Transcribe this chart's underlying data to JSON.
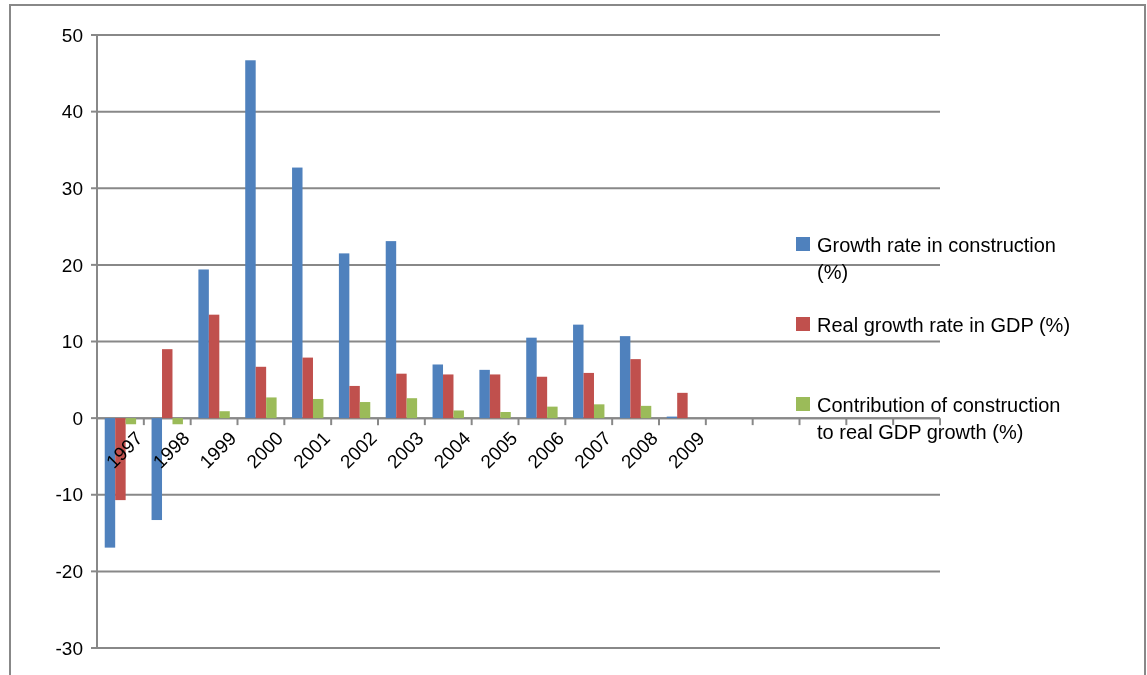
{
  "chart_data": {
    "type": "bar",
    "categories": [
      "1997",
      "1998",
      "1999",
      "2000",
      "2001",
      "2002",
      "2003",
      "2004",
      "2005",
      "2006",
      "2007",
      "2008",
      "2009",
      null,
      null,
      null,
      null,
      null
    ],
    "series": [
      {
        "name": "Growth rate in construction (%)",
        "color": "#4f81bd",
        "values": [
          -16.9,
          -13.3,
          19.4,
          46.7,
          32.7,
          21.5,
          23.1,
          7.0,
          6.3,
          10.5,
          12.2,
          10.7,
          0.2,
          null,
          null,
          null,
          null,
          null
        ]
      },
      {
        "name": "Real growth rate in GDP (%)",
        "color": "#c0504d",
        "values": [
          -10.7,
          9.0,
          13.5,
          6.7,
          7.9,
          4.2,
          5.8,
          5.7,
          5.7,
          5.4,
          5.9,
          7.7,
          3.3,
          null,
          null,
          null,
          null,
          null
        ]
      },
      {
        "name": "Contribution of construction to real GDP growth (%)",
        "color": "#9bbb59",
        "values": [
          -0.8,
          -0.8,
          0.9,
          2.7,
          2.5,
          2.1,
          2.6,
          1.0,
          0.8,
          1.5,
          1.8,
          1.6,
          null,
          null,
          null,
          null,
          null,
          null
        ]
      }
    ],
    "ylim": [
      -30,
      50
    ],
    "yticks": [
      -30,
      -20,
      -10,
      0,
      10,
      20,
      30,
      40,
      50
    ],
    "grid": "y",
    "legend": "right"
  }
}
